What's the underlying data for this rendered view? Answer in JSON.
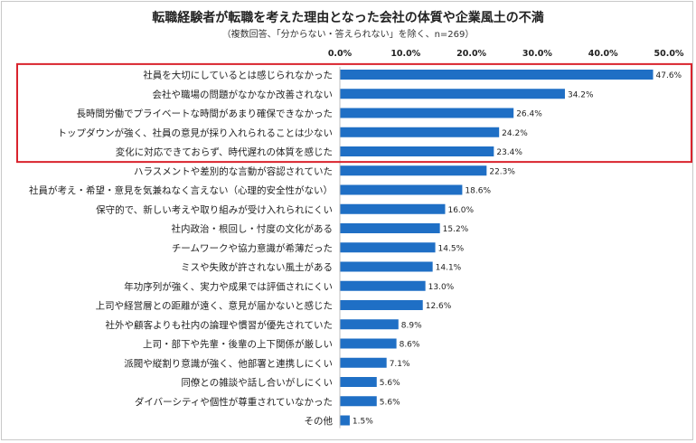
{
  "chart_data": {
    "type": "bar",
    "orientation": "horizontal",
    "title": "転職経験者が転職を考えた理由となった会社の体質や企業風土の不満",
    "subtitle": "（複数回答、「分からない・答えられない」を除く、n=269）",
    "xlim": [
      0,
      50
    ],
    "x_ticks": [
      "0.0%",
      "10.0%",
      "20.0%",
      "30.0%",
      "40.0%",
      "50.0%"
    ],
    "x_tick_values": [
      0,
      10,
      20,
      30,
      40,
      50
    ],
    "grid": false,
    "bar_color": "#1f6fc5",
    "highlight_color": "#d9232d",
    "highlighted_top_n": 5,
    "categories": [
      "社員を大切にしているとは感じられなかった",
      "会社や職場の問題がなかなか改善されない",
      "長時間労働でプライベートな時間があまり確保できなかった",
      "トップダウンが強く、社員の意見が採り入れられることは少ない",
      "変化に対応できておらず、時代遅れの体質を感じた",
      "ハラスメントや差別的な言動が容認されていた",
      "社員が考え・希望・意見を気兼ねなく言えない（心理的安全性がない）",
      "保守的で、新しい考えや取り組みが受け入れられにくい",
      "社内政治・根回し・忖度の文化がある",
      "チームワークや協力意識が希薄だった",
      "ミスや失敗が許されない風土がある",
      "年功序列が強く、実力や成果では評価されにくい",
      "上司や経営層との距離が遠く、意見が届かないと感じた",
      "社外や顧客よりも社内の論理や慣習が優先されていた",
      "上司・部下や先輩・後輩の上下関係が厳しい",
      "派閥や縦割り意識が強く、他部署と連携しにくい",
      "同僚との雑談や話し合いがしにくい",
      "ダイバーシティや個性が尊重されていなかった",
      "その他"
    ],
    "values": [
      47.6,
      34.2,
      26.4,
      24.2,
      23.4,
      22.3,
      18.6,
      16.0,
      15.2,
      14.5,
      14.1,
      13.0,
      12.6,
      8.9,
      8.6,
      7.1,
      5.6,
      5.6,
      1.5
    ],
    "value_labels": [
      "47.6%",
      "34.2%",
      "26.4%",
      "24.2%",
      "23.4%",
      "22.3%",
      "18.6%",
      "16.0%",
      "15.2%",
      "14.5%",
      "14.1%",
      "13.0%",
      "12.6%",
      "8.9%",
      "8.6%",
      "7.1%",
      "5.6%",
      "5.6%",
      "1.5%"
    ]
  }
}
